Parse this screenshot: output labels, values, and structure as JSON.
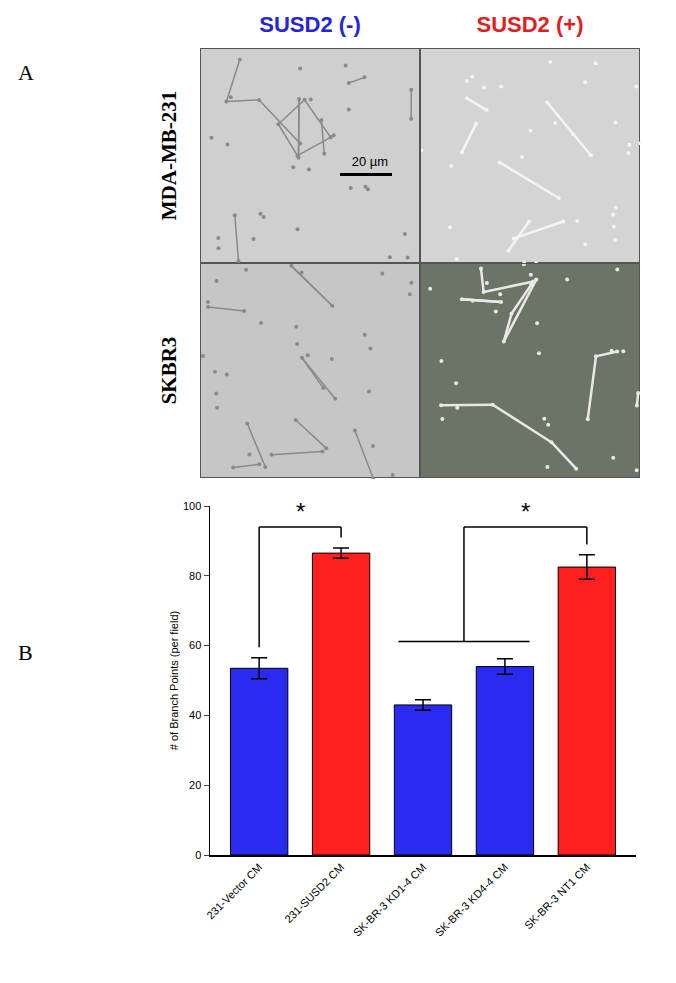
{
  "panel_labels": [
    "A",
    "B"
  ],
  "images": {
    "columns": [
      {
        "text": "SUSD2 (-)",
        "color": "#2424d8"
      },
      {
        "text": "SUSD2 (+)",
        "color": "#e01e1e"
      }
    ],
    "rows": [
      "MDA-MB-231",
      "SKBR3"
    ],
    "scale_bar": "20 µm"
  },
  "chart_data": {
    "type": "bar",
    "categories": [
      "231-Vector CM",
      "231-SUSD2 CM",
      "SK-BR-3 KD1-4 CM",
      "SK-BR-3 KD4-4 CM",
      "SK-BR-3 NT1 CM"
    ],
    "values": [
      53.5,
      86.5,
      43,
      54,
      82.5
    ],
    "errors": [
      3,
      1.5,
      1.5,
      2.2,
      3.5
    ],
    "colors": [
      "#2a2af0",
      "#ff1f1f",
      "#2a2af0",
      "#2a2af0",
      "#ff1f1f"
    ],
    "y_label": "# of Branch Points (per field)",
    "ylim": [
      0,
      100
    ],
    "yticks": [
      0,
      20,
      40,
      60,
      80,
      100
    ],
    "grid": false,
    "significance": [
      {
        "label": "*",
        "group": [
          0
        ],
        "vs": 1
      },
      {
        "label": "*",
        "group": [
          2,
          3
        ],
        "vs": 4
      }
    ]
  }
}
